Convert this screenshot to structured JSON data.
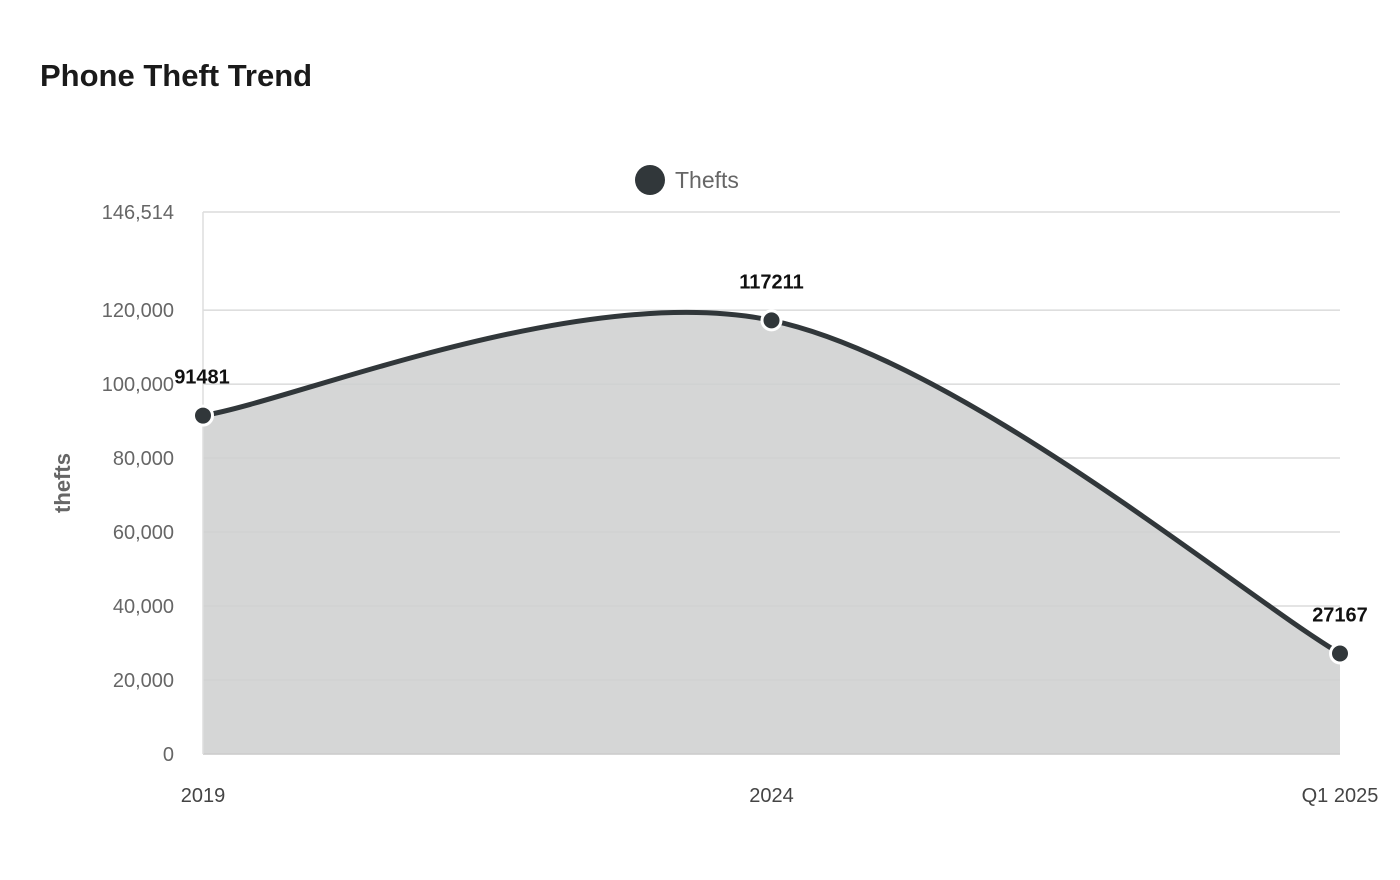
{
  "chart_data": {
    "type": "area",
    "title": "Phone Theft Trend",
    "xlabel": "",
    "ylabel": "thefts",
    "categories": [
      "2019",
      "2024",
      "Q1 2025"
    ],
    "series": [
      {
        "name": "Thefts",
        "values": [
          91481,
          117211,
          27167
        ],
        "color": "#31373a"
      }
    ],
    "data_labels": [
      "91481",
      "117211",
      "27167"
    ],
    "ylim": [
      0,
      146514
    ],
    "y_ticks": [
      0,
      20000,
      40000,
      60000,
      80000,
      100000,
      120000,
      146514
    ],
    "y_tick_labels": [
      "0",
      "20,000",
      "40,000",
      "60,000",
      "80,000",
      "100,000",
      "120,000",
      "146,514"
    ],
    "fill_color": "#d5d6d6",
    "grid": true,
    "legend_position": "top-center",
    "curve": "smooth"
  }
}
